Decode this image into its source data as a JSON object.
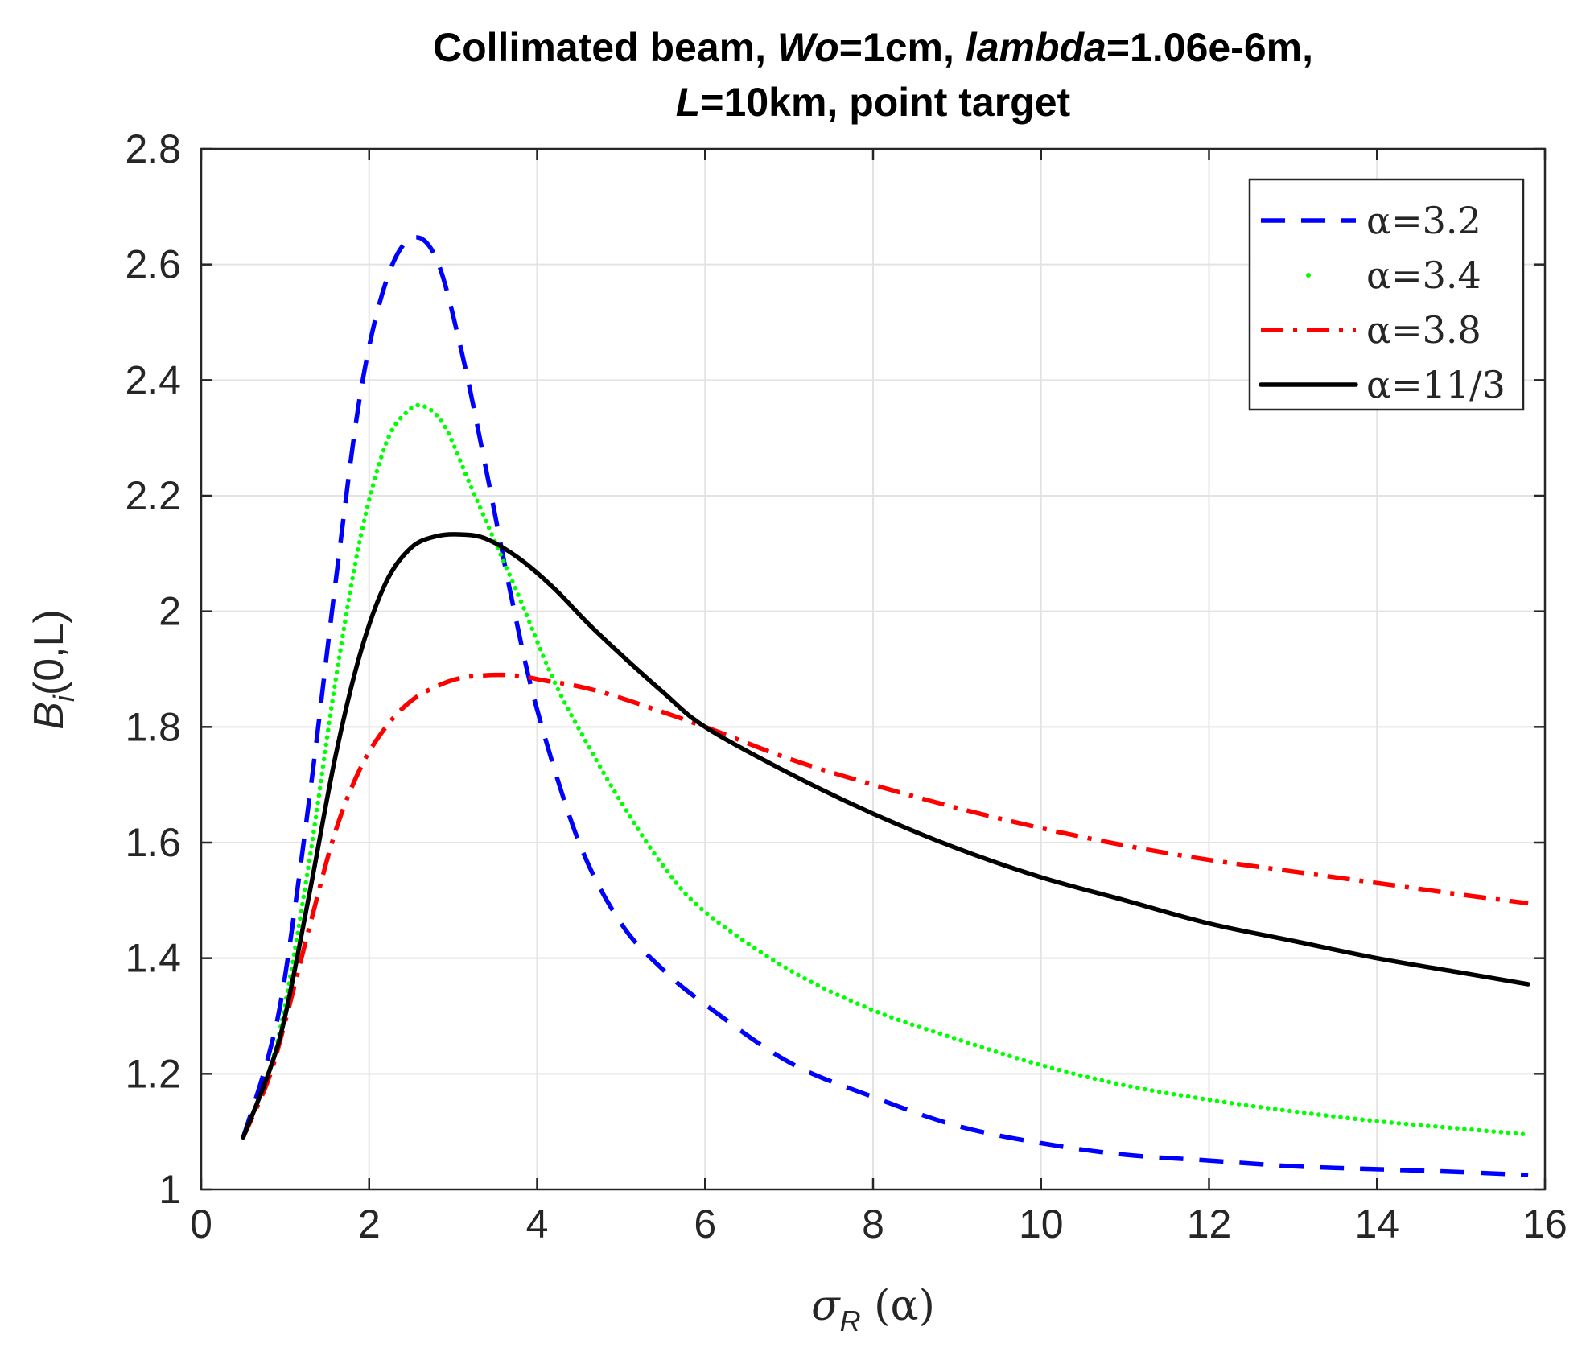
{
  "chart_data": {
    "type": "line",
    "title": {
      "line1": {
        "a": "Collimated beam, ",
        "b": "Wo",
        "c": "=1cm, ",
        "d": "lambda",
        "e": "=1.06e-6m,"
      },
      "line2": {
        "a": "L",
        "b": "=10km, point target"
      }
    },
    "xlabel": {
      "sym": "σ",
      "sub": "R",
      "rest": " (α)"
    },
    "ylabel": {
      "sym": "B",
      "sub": "i",
      "rest": "(0,L)"
    },
    "xlim": [
      0,
      16
    ],
    "ylim": [
      1,
      2.8
    ],
    "grid": true,
    "legend_position": "top-right",
    "xticks": [
      0,
      2,
      4,
      6,
      8,
      10,
      12,
      14,
      16
    ],
    "yticks": [
      1,
      1.2,
      1.4,
      1.6,
      1.8,
      2,
      2.2,
      2.4,
      2.6,
      2.8
    ],
    "xtick_labels": [
      "0",
      "2",
      "4",
      "6",
      "8",
      "10",
      "12",
      "14",
      "16"
    ],
    "ytick_labels": [
      "1",
      "1.2",
      "1.4",
      "1.6",
      "1.8",
      "2",
      "2.2",
      "2.4",
      "2.6",
      "2.8"
    ],
    "series": [
      {
        "name": "α=3.2",
        "color": "#0000ff",
        "style": "dashed",
        "x": [
          0.5,
          0.8,
          1.0,
          1.3,
          1.6,
          1.9,
          2.2,
          2.5,
          2.8,
          3.1,
          3.4,
          3.7,
          4.0,
          4.5,
          5.0,
          5.5,
          6.0,
          7.0,
          8.0,
          9.0,
          10.0,
          11.0,
          12.0,
          13.0,
          14.0,
          15.0,
          15.8
        ],
        "y": [
          1.09,
          1.23,
          1.37,
          1.69,
          2.05,
          2.38,
          2.57,
          2.645,
          2.61,
          2.45,
          2.24,
          2.02,
          1.83,
          1.6,
          1.46,
          1.38,
          1.32,
          1.22,
          1.16,
          1.11,
          1.08,
          1.06,
          1.05,
          1.04,
          1.035,
          1.03,
          1.025
        ]
      },
      {
        "name": "α=3.4",
        "color": "#00ff00",
        "style": "dotted",
        "x": [
          0.5,
          0.8,
          1.0,
          1.3,
          1.6,
          1.9,
          2.2,
          2.45,
          2.65,
          2.9,
          3.2,
          3.5,
          3.8,
          4.2,
          4.6,
          5.0,
          5.5,
          6.0,
          7.0,
          8.0,
          9.0,
          10.0,
          11.0,
          12.0,
          13.0,
          14.0,
          15.0,
          15.8
        ],
        "y": [
          1.09,
          1.2,
          1.32,
          1.58,
          1.88,
          2.13,
          2.29,
          2.345,
          2.355,
          2.32,
          2.22,
          2.12,
          2.02,
          1.88,
          1.77,
          1.67,
          1.56,
          1.48,
          1.38,
          1.31,
          1.26,
          1.215,
          1.18,
          1.155,
          1.135,
          1.118,
          1.105,
          1.095
        ]
      },
      {
        "name": "α=3.8",
        "color": "#ff0000",
        "style": "dashdot",
        "x": [
          0.5,
          0.8,
          1.0,
          1.3,
          1.6,
          1.9,
          2.2,
          2.5,
          2.8,
          3.1,
          3.5,
          3.8,
          4.1,
          4.5,
          5.0,
          6.0,
          7.0,
          8.0,
          9.0,
          10.0,
          11.0,
          12.0,
          13.0,
          14.0,
          15.0,
          15.8
        ],
        "y": [
          1.09,
          1.19,
          1.29,
          1.46,
          1.62,
          1.73,
          1.8,
          1.845,
          1.87,
          1.885,
          1.89,
          1.888,
          1.88,
          1.87,
          1.85,
          1.8,
          1.745,
          1.7,
          1.66,
          1.625,
          1.595,
          1.57,
          1.55,
          1.53,
          1.51,
          1.495
        ]
      },
      {
        "name": "α=11/3",
        "color": "#000000",
        "style": "solid",
        "x": [
          0.5,
          0.8,
          1.0,
          1.3,
          1.6,
          1.9,
          2.2,
          2.5,
          2.8,
          3.1,
          3.4,
          3.8,
          4.2,
          4.6,
          5.0,
          5.5,
          6.0,
          7.0,
          8.0,
          9.0,
          10.0,
          11.0,
          12.0,
          13.0,
          14.0,
          15.0,
          15.8
        ],
        "y": [
          1.09,
          1.2,
          1.3,
          1.52,
          1.75,
          1.93,
          2.05,
          2.11,
          2.13,
          2.133,
          2.125,
          2.09,
          2.04,
          1.98,
          1.925,
          1.86,
          1.8,
          1.72,
          1.65,
          1.59,
          1.54,
          1.5,
          1.46,
          1.43,
          1.4,
          1.375,
          1.355
        ]
      }
    ]
  }
}
